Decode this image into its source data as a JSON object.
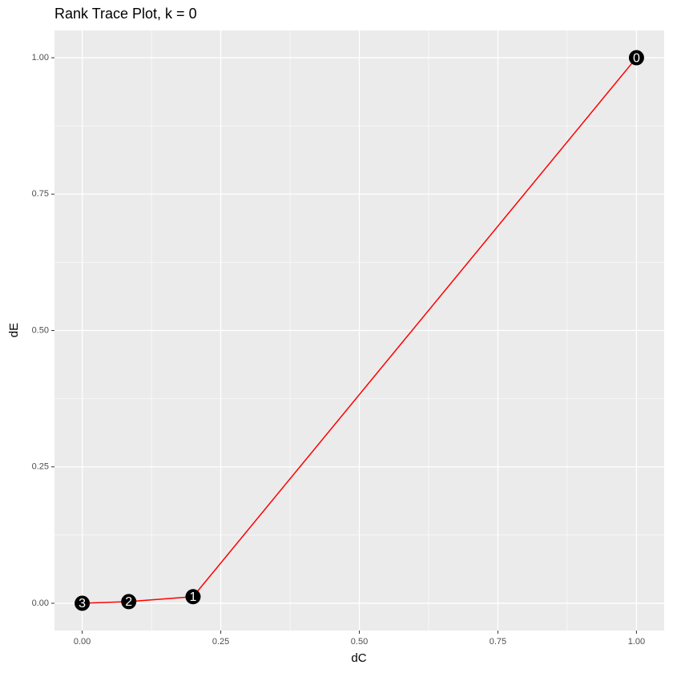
{
  "chart_data": {
    "type": "line",
    "title": "Rank Trace Plot, k =  0",
    "x_label": "dC",
    "y_label": "dE",
    "x": [
      1,
      0.2,
      0.084,
      0
    ],
    "y": [
      1,
      0.012,
      0.003,
      0
    ],
    "point_labels": [
      "0",
      "1",
      "2",
      "3"
    ],
    "line_color": "#ff0000",
    "point_color": "#000000",
    "xlim": [
      -0.05,
      1.05
    ],
    "ylim": [
      -0.05,
      1.05
    ],
    "xticks": [
      {
        "value": 0,
        "label": "0.00"
      },
      {
        "value": 0.25,
        "label": "0.25"
      },
      {
        "value": 0.5,
        "label": "0.50"
      },
      {
        "value": 0.75,
        "label": "0.75"
      },
      {
        "value": 1,
        "label": "1.00"
      }
    ],
    "yticks": [
      {
        "value": 0,
        "label": "0.00"
      },
      {
        "value": 0.25,
        "label": "0.25"
      },
      {
        "value": 0.5,
        "label": "0.50"
      },
      {
        "value": 0.75,
        "label": "0.75"
      },
      {
        "value": 1,
        "label": "1.00"
      }
    ],
    "grid": true
  }
}
